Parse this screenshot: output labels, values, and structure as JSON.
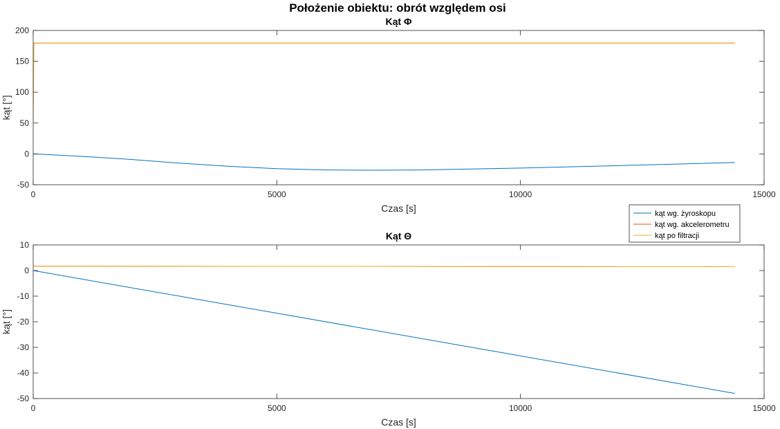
{
  "figure_title": "Położenie obiektu: obrót względem osi",
  "legend": {
    "location": "outside-right-between-subplots",
    "entries": [
      {
        "label": "kąt wg. żyroskopu",
        "color": "#0072BD"
      },
      {
        "label": "kąt wg. akcelerometru",
        "color": "#D95319"
      },
      {
        "label": "kąt po filtracji",
        "color": "#EDB120"
      }
    ]
  },
  "chart_data": [
    {
      "type": "line",
      "title": "Kąt Φ",
      "xlabel": "Czas [s]",
      "ylabel": "kąt [°]",
      "xlim": [
        0,
        15000
      ],
      "ylim": [
        -50,
        200
      ],
      "xticks": [
        0,
        5000,
        10000,
        15000
      ],
      "yticks": [
        -50,
        0,
        50,
        100,
        150,
        200
      ],
      "series": [
        {
          "name": "kąt wg. żyroskopu",
          "color": "#0072BD",
          "x": [
            0,
            500,
            1000,
            2000,
            3000,
            4000,
            5000,
            6000,
            7000,
            8000,
            9000,
            10000,
            11000,
            12000,
            13000,
            14400
          ],
          "y": [
            0,
            -2,
            -4,
            -9,
            -15,
            -20,
            -24,
            -26,
            -26.5,
            -26,
            -24.5,
            -23,
            -21,
            -19,
            -17,
            -14
          ]
        },
        {
          "name": "kąt wg. akcelerometru",
          "color": "#D95319",
          "x": [
            0,
            14400
          ],
          "y": [
            179.5,
            179.5
          ]
        },
        {
          "name": "kąt po filtracji",
          "color": "#EDB120",
          "x": [
            0,
            15,
            30,
            14400
          ],
          "y": [
            50,
            175,
            179.5,
            179.5
          ]
        }
      ]
    },
    {
      "type": "line",
      "title": "Kąt Θ",
      "xlabel": "Czas [s]",
      "ylabel": "kąt [°]",
      "xlim": [
        0,
        15000
      ],
      "ylim": [
        -50,
        10
      ],
      "xticks": [
        0,
        5000,
        10000,
        15000
      ],
      "yticks": [
        -50,
        -40,
        -30,
        -20,
        -10,
        0,
        10
      ],
      "series": [
        {
          "name": "kąt wg. żyroskopu",
          "color": "#0072BD",
          "x": [
            0,
            14400
          ],
          "y": [
            0,
            -48
          ]
        },
        {
          "name": "kąt wg. akcelerometru",
          "color": "#D95319",
          "x": [
            0,
            14400
          ],
          "y": [
            1.7,
            1.5
          ]
        },
        {
          "name": "kąt po filtracji",
          "color": "#EDB120",
          "x": [
            0,
            14400
          ],
          "y": [
            1.7,
            1.5
          ]
        }
      ]
    }
  ]
}
